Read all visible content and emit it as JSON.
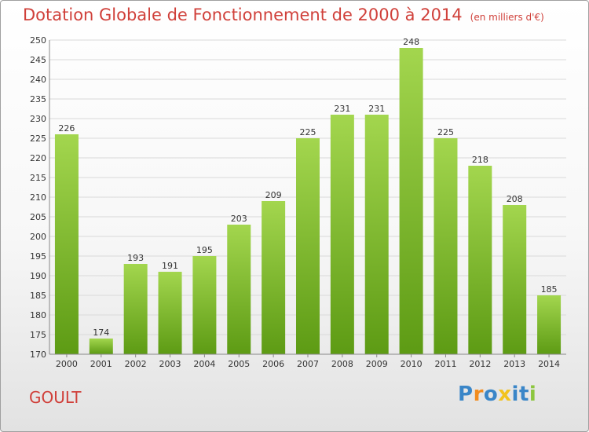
{
  "header": {
    "title": "Dotation Globale de Fonctionnement de 2000 à 2014",
    "subtitle": "(en milliers d'€)"
  },
  "footer": {
    "commune": "GOULT",
    "logo": "Proxiti"
  },
  "colors": {
    "title": "#d0403a",
    "bar_top": "#a3d64e",
    "bar_bottom": "#5d9b14",
    "logo_letters": [
      "#3a86c8",
      "#f28c1e",
      "#3a86c8",
      "#f2c31e",
      "#3a86c8",
      "#3a86c8",
      "#8cc63f"
    ]
  },
  "chart_data": {
    "type": "bar",
    "categories": [
      "2000",
      "2001",
      "2002",
      "2003",
      "2004",
      "2005",
      "2006",
      "2007",
      "2008",
      "2009",
      "2010",
      "2011",
      "2012",
      "2013",
      "2014"
    ],
    "values": [
      226,
      174,
      193,
      191,
      195,
      203,
      209,
      225,
      231,
      231,
      248,
      225,
      218,
      208,
      185
    ],
    "ylim": [
      170,
      250
    ],
    "yticks": [
      170,
      175,
      180,
      185,
      190,
      195,
      200,
      205,
      210,
      215,
      220,
      225,
      230,
      235,
      240,
      245,
      250
    ],
    "grid": true,
    "legend": "none"
  }
}
